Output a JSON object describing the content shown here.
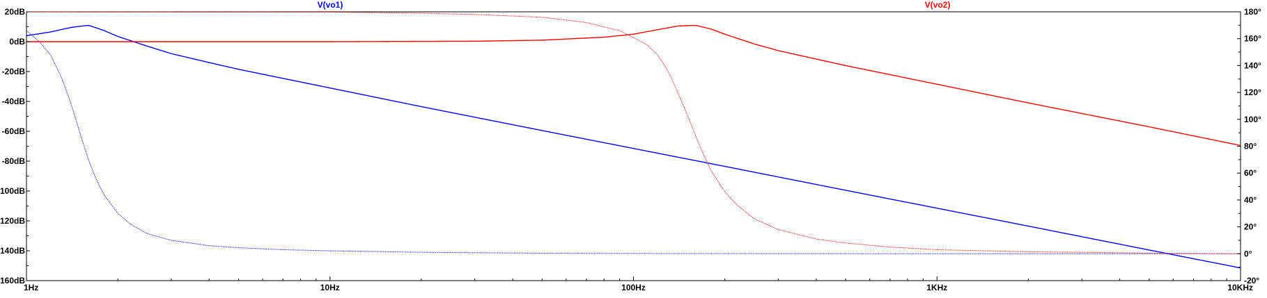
{
  "chart_data": {
    "type": "line",
    "x_scale": "log",
    "x_range_hz": [
      1,
      10000
    ],
    "left_axis": {
      "range_db": [
        -160,
        20
      ],
      "unit": "dB"
    },
    "right_axis": {
      "range_deg": [
        -20,
        180
      ],
      "unit": "°"
    },
    "grid": false,
    "x_ticks": [
      {
        "value": 1,
        "label": "1Hz"
      },
      {
        "value": 10,
        "label": "10Hz"
      },
      {
        "value": 100,
        "label": "100Hz"
      },
      {
        "value": 1000,
        "label": "1KHz"
      },
      {
        "value": 10000,
        "label": "10KHz"
      }
    ],
    "left_ticks": [
      {
        "value": 20,
        "label": "20dB"
      },
      {
        "value": 0,
        "label": "0dB"
      },
      {
        "value": -20,
        "label": "-20dB"
      },
      {
        "value": -40,
        "label": "-40dB"
      },
      {
        "value": -60,
        "label": "-60dB"
      },
      {
        "value": -80,
        "label": "-80dB"
      },
      {
        "value": -100,
        "label": "-100dB"
      },
      {
        "value": -120,
        "label": "-120dB"
      },
      {
        "value": -140,
        "label": "-140dB"
      },
      {
        "value": -160,
        "label": "-160dB"
      }
    ],
    "right_ticks": [
      {
        "value": 180,
        "label": "180°"
      },
      {
        "value": 160,
        "label": "160°"
      },
      {
        "value": 140,
        "label": "140°"
      },
      {
        "value": 120,
        "label": "120°"
      },
      {
        "value": 100,
        "label": "100°"
      },
      {
        "value": 80,
        "label": "80°"
      },
      {
        "value": 60,
        "label": "60°"
      },
      {
        "value": 40,
        "label": "40°"
      },
      {
        "value": 20,
        "label": "20°"
      },
      {
        "value": 0,
        "label": "0°"
      },
      {
        "value": -20,
        "label": "-20°"
      }
    ],
    "series": [
      {
        "name": "V(vo1)",
        "color": "#0000ff",
        "magnitude_db": {
          "x": [
            1,
            1.2,
            1.4,
            1.6,
            1.8,
            2,
            2.5,
            3,
            4,
            5,
            10,
            20,
            50,
            100,
            200,
            500,
            1000,
            2000,
            5000,
            10000
          ],
          "y": [
            4,
            6.5,
            9.5,
            11,
            7.5,
            3.5,
            -3,
            -8,
            -14,
            -18.5,
            -31,
            -43.5,
            -59.5,
            -71.5,
            -83.5,
            -99.5,
            -111.5,
            -123.5,
            -139.5,
            -151.5
          ]
        },
        "phase_deg": {
          "x": [
            1,
            1.1,
            1.2,
            1.3,
            1.4,
            1.5,
            1.6,
            1.7,
            1.8,
            2,
            2.2,
            2.5,
            3,
            4,
            5,
            7,
            10,
            20,
            50,
            100,
            1000,
            10000
          ],
          "y": [
            166,
            158,
            148,
            132,
            112,
            90,
            70,
            55,
            44,
            30,
            22,
            15,
            10,
            6,
            4.5,
            3,
            2.2,
            1.1,
            0.4,
            0.2,
            0,
            0
          ]
        }
      },
      {
        "name": "V(vo2)",
        "color": "#ff0000",
        "magnitude_db": {
          "x": [
            1,
            10,
            30,
            50,
            80,
            100,
            120,
            140,
            160,
            180,
            200,
            250,
            300,
            500,
            1000,
            2000,
            5000,
            10000
          ],
          "y": [
            0,
            0,
            0.3,
            1,
            3,
            5,
            8,
            10.5,
            11,
            8.5,
            5,
            -1.5,
            -6,
            -16,
            -28.5,
            -41,
            -57,
            -69.5
          ]
        },
        "phase_deg": {
          "x": [
            1,
            10,
            20,
            30,
            50,
            70,
            90,
            110,
            120,
            130,
            140,
            150,
            160,
            170,
            180,
            200,
            220,
            250,
            300,
            400,
            500,
            700,
            1000,
            2000,
            5000,
            10000
          ],
          "y": [
            180,
            179.8,
            179,
            178,
            176,
            172,
            166,
            156,
            148,
            136,
            120,
            104,
            88,
            74,
            62,
            46,
            36,
            26,
            18,
            11,
            8,
            5,
            3,
            1.5,
            0.5,
            0
          ]
        }
      }
    ]
  }
}
